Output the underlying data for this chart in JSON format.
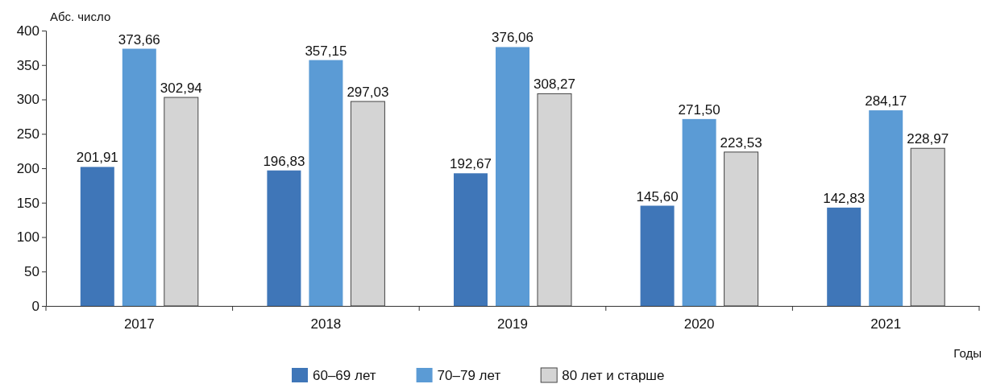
{
  "chart_data": {
    "type": "bar",
    "ylabel": "Абс. число",
    "xlabel": "Годы",
    "categories": [
      "2017",
      "2018",
      "2019",
      "2020",
      "2021"
    ],
    "series": [
      {
        "name": "60–69 лет",
        "color": "#3f76b8",
        "values": [
          201.91,
          196.83,
          192.67,
          145.6,
          142.83
        ],
        "value_labels": [
          "201,91",
          "196,83",
          "192,67",
          "145,60",
          "142,83"
        ]
      },
      {
        "name": "70–79 лет",
        "color": "#5b9bd5",
        "values": [
          373.66,
          357.15,
          376.06,
          271.5,
          284.17
        ],
        "value_labels": [
          "373,66",
          "357,15",
          "376,06",
          "271,50",
          "284,17"
        ]
      },
      {
        "name": "80 лет и старше",
        "color": "#d4d4d4",
        "values": [
          302.94,
          297.03,
          308.27,
          223.53,
          228.97
        ],
        "value_labels": [
          "302,94",
          "297,03",
          "308,27",
          "223,53",
          "228,97"
        ]
      }
    ],
    "ylim": [
      0,
      400
    ],
    "yticks": [
      0,
      50,
      100,
      150,
      200,
      250,
      300,
      350,
      400
    ],
    "grid": false,
    "legend": "bottom"
  }
}
